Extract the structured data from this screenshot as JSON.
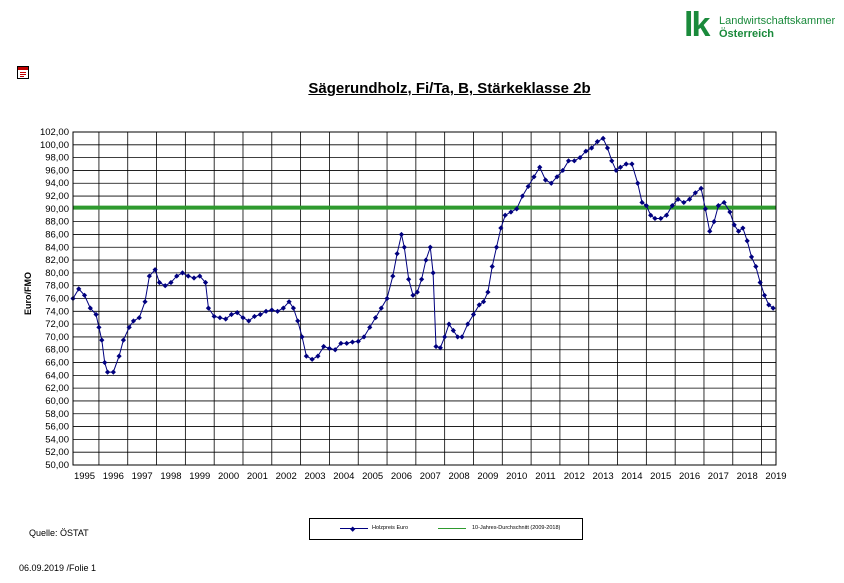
{
  "logo": {
    "mark": "lk",
    "line1": "Landwirtschaftskammer",
    "line2": "Österreich"
  },
  "icons": {
    "pdf": "pdf-document-icon"
  },
  "source_text": "Quelle: ÖSTAT",
  "footer_text": "06.09.2019 /Folie 1",
  "colors": {
    "price": "#00007f",
    "average": "#2e9a2e",
    "grid": "#000000"
  },
  "chart_data": {
    "type": "line",
    "title": "Sägerundholz, Fi/Ta, B, Stärkeklasse 2b",
    "ylabel": "Euro/FMO",
    "xlabel": "",
    "ylim": [
      50,
      102
    ],
    "ytick_step": 2,
    "yticks": [
      "50,00",
      "52,00",
      "54,00",
      "56,00",
      "58,00",
      "60,00",
      "62,00",
      "64,00",
      "66,00",
      "68,00",
      "70,00",
      "72,00",
      "74,00",
      "76,00",
      "78,00",
      "80,00",
      "82,00",
      "84,00",
      "86,00",
      "88,00",
      "90,00",
      "92,00",
      "94,00",
      "96,00",
      "98,00",
      "100,00",
      "102,00"
    ],
    "xlim": [
      1994.6,
      2019.0
    ],
    "xticks": [
      "1995",
      "1996",
      "1997",
      "1998",
      "1999",
      "2000",
      "2001",
      "2002",
      "2003",
      "2004",
      "2005",
      "2006",
      "2007",
      "2008",
      "2009",
      "2010",
      "2011",
      "2012",
      "2013",
      "2014",
      "2015",
      "2016",
      "2017",
      "2018",
      "2019"
    ],
    "grid": true,
    "legend_position": "bottom-center",
    "series": [
      {
        "name": "Holzpreis Euro",
        "marker": "diamond",
        "points": [
          [
            1994.6,
            76.0
          ],
          [
            1994.8,
            77.5
          ],
          [
            1995.0,
            76.5
          ],
          [
            1995.2,
            74.5
          ],
          [
            1995.4,
            73.5
          ],
          [
            1995.5,
            71.5
          ],
          [
            1995.6,
            69.5
          ],
          [
            1995.7,
            66
          ],
          [
            1995.8,
            64.5
          ],
          [
            1996.0,
            64.5
          ],
          [
            1996.2,
            67
          ],
          [
            1996.35,
            69.5
          ],
          [
            1996.55,
            71.5
          ],
          [
            1996.7,
            72.5
          ],
          [
            1996.9,
            73
          ],
          [
            1997.1,
            75.5
          ],
          [
            1997.25,
            79.5
          ],
          [
            1997.45,
            80.5
          ],
          [
            1997.6,
            78.5
          ],
          [
            1997.8,
            78
          ],
          [
            1998.0,
            78.5
          ],
          [
            1998.2,
            79.5
          ],
          [
            1998.4,
            80
          ],
          [
            1998.6,
            79.5
          ],
          [
            1998.8,
            79.2
          ],
          [
            1999.0,
            79.5
          ],
          [
            1999.2,
            78.5
          ],
          [
            1999.3,
            74.5
          ],
          [
            1999.5,
            73.2
          ],
          [
            1999.7,
            73
          ],
          [
            1999.9,
            72.8
          ],
          [
            2000.1,
            73.5
          ],
          [
            2000.3,
            73.8
          ],
          [
            2000.5,
            73
          ],
          [
            2000.7,
            72.5
          ],
          [
            2000.9,
            73.2
          ],
          [
            2001.1,
            73.5
          ],
          [
            2001.3,
            74
          ],
          [
            2001.5,
            74.2
          ],
          [
            2001.7,
            74
          ],
          [
            2001.9,
            74.5
          ],
          [
            2002.1,
            75.5
          ],
          [
            2002.25,
            74.5
          ],
          [
            2002.4,
            72.5
          ],
          [
            2002.55,
            70
          ],
          [
            2002.7,
            67
          ],
          [
            2002.9,
            66.5
          ],
          [
            2003.1,
            67
          ],
          [
            2003.3,
            68.5
          ],
          [
            2003.5,
            68.2
          ],
          [
            2003.7,
            68
          ],
          [
            2003.9,
            69
          ],
          [
            2004.1,
            69
          ],
          [
            2004.3,
            69.2
          ],
          [
            2004.5,
            69.3
          ],
          [
            2004.7,
            70
          ],
          [
            2004.9,
            71.5
          ],
          [
            2005.1,
            73
          ],
          [
            2005.3,
            74.5
          ],
          [
            2005.5,
            76
          ],
          [
            2005.7,
            79.5
          ],
          [
            2005.85,
            83
          ],
          [
            2006.0,
            86
          ],
          [
            2006.1,
            84
          ],
          [
            2006.25,
            79
          ],
          [
            2006.4,
            76.5
          ],
          [
            2006.55,
            77
          ],
          [
            2006.7,
            79
          ],
          [
            2006.85,
            82
          ],
          [
            2007.0,
            84
          ],
          [
            2007.1,
            80
          ],
          [
            2007.2,
            68.5
          ],
          [
            2007.35,
            68.3
          ],
          [
            2007.5,
            70
          ],
          [
            2007.65,
            72
          ],
          [
            2007.8,
            71
          ],
          [
            2007.95,
            70
          ],
          [
            2008.1,
            70
          ],
          [
            2008.3,
            72
          ],
          [
            2008.5,
            73.5
          ],
          [
            2008.7,
            75
          ],
          [
            2008.85,
            75.5
          ],
          [
            2009.0,
            77
          ],
          [
            2009.15,
            81
          ],
          [
            2009.3,
            84
          ],
          [
            2009.45,
            87
          ],
          [
            2009.6,
            89
          ],
          [
            2009.8,
            89.5
          ],
          [
            2010.0,
            90
          ],
          [
            2010.2,
            92
          ],
          [
            2010.4,
            93.5
          ],
          [
            2010.6,
            95
          ],
          [
            2010.8,
            96.5
          ],
          [
            2011.0,
            94.5
          ],
          [
            2011.2,
            94
          ],
          [
            2011.4,
            95
          ],
          [
            2011.6,
            96
          ],
          [
            2011.8,
            97.5
          ],
          [
            2012.0,
            97.5
          ],
          [
            2012.2,
            98
          ],
          [
            2012.4,
            99
          ],
          [
            2012.6,
            99.5
          ],
          [
            2012.8,
            100.5
          ],
          [
            2013.0,
            101
          ],
          [
            2013.15,
            99.5
          ],
          [
            2013.3,
            97.5
          ],
          [
            2013.45,
            96
          ],
          [
            2013.6,
            96.5
          ],
          [
            2013.8,
            97
          ],
          [
            2014.0,
            97
          ],
          [
            2014.2,
            94
          ],
          [
            2014.35,
            91
          ],
          [
            2014.5,
            90.5
          ],
          [
            2014.65,
            89
          ],
          [
            2014.8,
            88.5
          ],
          [
            2015.0,
            88.5
          ],
          [
            2015.2,
            89
          ],
          [
            2015.4,
            90.5
          ],
          [
            2015.6,
            91.5
          ],
          [
            2015.8,
            91
          ],
          [
            2016.0,
            91.5
          ],
          [
            2016.2,
            92.5
          ],
          [
            2016.4,
            93.2
          ],
          [
            2016.55,
            90
          ],
          [
            2016.7,
            86.5
          ],
          [
            2016.85,
            88
          ],
          [
            2017.0,
            90.5
          ],
          [
            2017.2,
            91
          ],
          [
            2017.4,
            89.5
          ],
          [
            2017.55,
            87.5
          ],
          [
            2017.7,
            86.5
          ],
          [
            2017.85,
            87
          ],
          [
            2018.0,
            85
          ],
          [
            2018.15,
            82.5
          ],
          [
            2018.3,
            81
          ],
          [
            2018.45,
            78.5
          ],
          [
            2018.6,
            76.5
          ],
          [
            2018.75,
            75
          ],
          [
            2018.9,
            74.5
          ]
        ]
      },
      {
        "name": "10-Jahres-Durchschnitt (2009-2018)",
        "marker": "none",
        "points": [
          [
            1994.6,
            90.2
          ],
          [
            2019.0,
            90.2
          ]
        ]
      }
    ]
  }
}
